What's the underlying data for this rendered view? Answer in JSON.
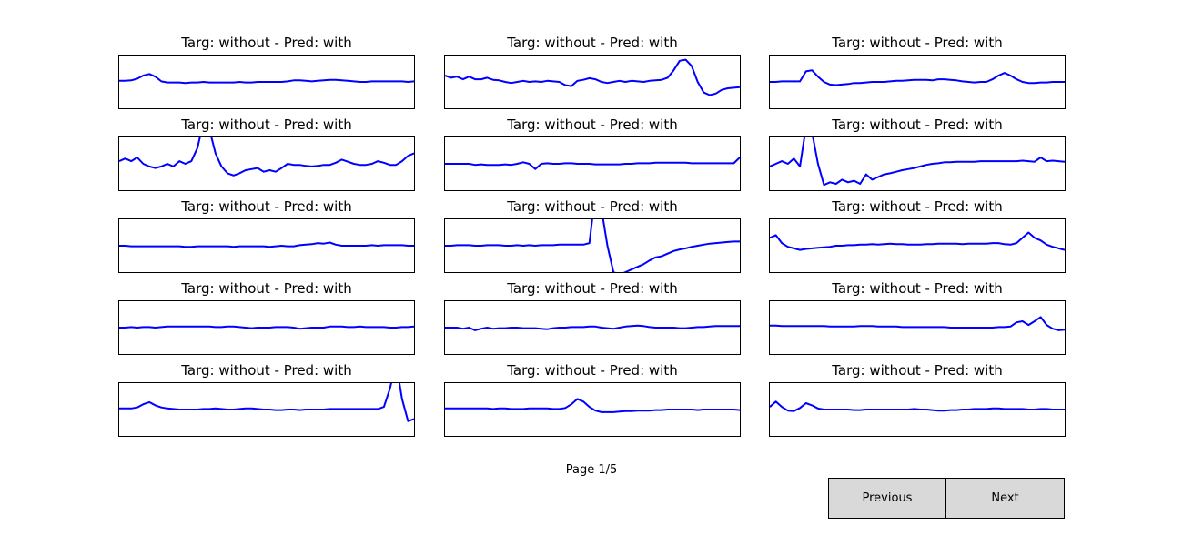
{
  "page_label": "Page 1/5",
  "buttons": {
    "previous": "Previous",
    "next": "Next"
  },
  "colors": {
    "line": "#0000ff",
    "button_bg": "#d9d9d9"
  },
  "chart_data": {
    "type": "line",
    "layout": "grid 5 rows x 3 columns",
    "axes_visible": false,
    "panels": [
      {
        "title": "Targ: without - Pred: with",
        "y": [
          0.48,
          0.48,
          0.47,
          0.44,
          0.38,
          0.35,
          0.4,
          0.49,
          0.51,
          0.51,
          0.51,
          0.52,
          0.51,
          0.51,
          0.5,
          0.51,
          0.51,
          0.51,
          0.51,
          0.51,
          0.5,
          0.51,
          0.51,
          0.5,
          0.5,
          0.5,
          0.5,
          0.5,
          0.49,
          0.47,
          0.47,
          0.48,
          0.49,
          0.48,
          0.47,
          0.46,
          0.46,
          0.47,
          0.48,
          0.49,
          0.5,
          0.5,
          0.49,
          0.49,
          0.49,
          0.49,
          0.49,
          0.49,
          0.5,
          0.49
        ]
      },
      {
        "title": "Targ: without - Pred: with",
        "y": [
          0.38,
          0.42,
          0.4,
          0.45,
          0.4,
          0.45,
          0.45,
          0.42,
          0.46,
          0.47,
          0.5,
          0.52,
          0.5,
          0.48,
          0.5,
          0.49,
          0.5,
          0.48,
          0.49,
          0.5,
          0.56,
          0.58,
          0.48,
          0.46,
          0.43,
          0.45,
          0.5,
          0.52,
          0.5,
          0.48,
          0.5,
          0.48,
          0.49,
          0.5,
          0.48,
          0.47,
          0.46,
          0.42,
          0.28,
          0.1,
          0.08,
          0.2,
          0.5,
          0.7,
          0.75,
          0.72,
          0.65,
          0.62,
          0.61,
          0.6
        ]
      },
      {
        "title": "Targ: without - Pred: with",
        "y": [
          0.5,
          0.5,
          0.49,
          0.49,
          0.49,
          0.49,
          0.3,
          0.28,
          0.4,
          0.5,
          0.55,
          0.56,
          0.55,
          0.54,
          0.52,
          0.52,
          0.51,
          0.5,
          0.5,
          0.5,
          0.49,
          0.48,
          0.48,
          0.47,
          0.46,
          0.46,
          0.46,
          0.47,
          0.45,
          0.45,
          0.46,
          0.47,
          0.49,
          0.5,
          0.51,
          0.5,
          0.5,
          0.45,
          0.38,
          0.33,
          0.38,
          0.45,
          0.5,
          0.52,
          0.52,
          0.51,
          0.51,
          0.5,
          0.5,
          0.5
        ]
      },
      {
        "title": "Targ: without - Pred: with",
        "y": [
          0.45,
          0.4,
          0.45,
          0.38,
          0.5,
          0.55,
          0.58,
          0.55,
          0.5,
          0.55,
          0.45,
          0.5,
          0.45,
          0.2,
          -0.3,
          -0.15,
          0.3,
          0.55,
          0.68,
          0.72,
          0.68,
          0.62,
          0.6,
          0.58,
          0.65,
          0.62,
          0.65,
          0.58,
          0.5,
          0.52,
          0.52,
          0.54,
          0.55,
          0.54,
          0.52,
          0.52,
          0.48,
          0.42,
          0.46,
          0.5,
          0.52,
          0.52,
          0.5,
          0.45,
          0.48,
          0.52,
          0.52,
          0.45,
          0.35,
          0.3
        ]
      },
      {
        "title": "Targ: without - Pred: with",
        "y": [
          0.5,
          0.5,
          0.5,
          0.5,
          0.5,
          0.52,
          0.51,
          0.52,
          0.52,
          0.52,
          0.51,
          0.52,
          0.5,
          0.47,
          0.5,
          0.6,
          0.5,
          0.49,
          0.5,
          0.5,
          0.49,
          0.49,
          0.5,
          0.5,
          0.5,
          0.51,
          0.51,
          0.51,
          0.51,
          0.51,
          0.5,
          0.5,
          0.49,
          0.49,
          0.49,
          0.48,
          0.48,
          0.48,
          0.48,
          0.48,
          0.48,
          0.49,
          0.49,
          0.49,
          0.49,
          0.49,
          0.49,
          0.49,
          0.49,
          0.38
        ]
      },
      {
        "title": "Targ: without - Pred: with",
        "y": [
          0.55,
          0.5,
          0.45,
          0.5,
          0.4,
          0.55,
          -0.2,
          -0.1,
          0.5,
          0.9,
          0.85,
          0.88,
          0.8,
          0.85,
          0.82,
          0.88,
          0.7,
          0.8,
          0.75,
          0.7,
          0.68,
          0.65,
          0.62,
          0.6,
          0.58,
          0.55,
          0.52,
          0.5,
          0.49,
          0.47,
          0.47,
          0.46,
          0.46,
          0.46,
          0.46,
          0.45,
          0.45,
          0.45,
          0.45,
          0.45,
          0.45,
          0.45,
          0.44,
          0.45,
          0.46,
          0.38,
          0.45,
          0.44,
          0.45,
          0.46
        ]
      },
      {
        "title": "Targ: without - Pred: with",
        "y": [
          0.5,
          0.5,
          0.51,
          0.51,
          0.51,
          0.51,
          0.51,
          0.51,
          0.51,
          0.51,
          0.51,
          0.52,
          0.52,
          0.51,
          0.51,
          0.51,
          0.51,
          0.51,
          0.51,
          0.52,
          0.51,
          0.51,
          0.51,
          0.51,
          0.51,
          0.52,
          0.51,
          0.5,
          0.51,
          0.51,
          0.49,
          0.48,
          0.47,
          0.45,
          0.46,
          0.44,
          0.48,
          0.5,
          0.5,
          0.5,
          0.5,
          0.5,
          0.49,
          0.5,
          0.49,
          0.49,
          0.49,
          0.49,
          0.5,
          0.5
        ]
      },
      {
        "title": "Targ: without - Pred: with",
        "y": [
          0.5,
          0.5,
          0.49,
          0.49,
          0.49,
          0.5,
          0.5,
          0.49,
          0.49,
          0.49,
          0.5,
          0.5,
          0.49,
          0.5,
          0.49,
          0.5,
          0.49,
          0.49,
          0.49,
          0.48,
          0.48,
          0.48,
          0.48,
          0.48,
          0.45,
          -0.5,
          -0.2,
          0.5,
          1.0,
          1.05,
          1.0,
          0.95,
          0.9,
          0.85,
          0.78,
          0.72,
          0.7,
          0.65,
          0.6,
          0.57,
          0.55,
          0.52,
          0.5,
          0.48,
          0.46,
          0.45,
          0.44,
          0.43,
          0.42,
          0.42
        ]
      },
      {
        "title": "Targ: without - Pred: with",
        "y": [
          0.35,
          0.3,
          0.45,
          0.52,
          0.55,
          0.58,
          0.56,
          0.55,
          0.54,
          0.53,
          0.52,
          0.5,
          0.5,
          0.49,
          0.49,
          0.48,
          0.48,
          0.47,
          0.48,
          0.47,
          0.46,
          0.47,
          0.47,
          0.48,
          0.48,
          0.48,
          0.47,
          0.47,
          0.46,
          0.46,
          0.46,
          0.46,
          0.47,
          0.46,
          0.46,
          0.46,
          0.46,
          0.45,
          0.45,
          0.47,
          0.48,
          0.45,
          0.35,
          0.25,
          0.35,
          0.4,
          0.48,
          0.52,
          0.55,
          0.58
        ]
      },
      {
        "title": "Targ: without - Pred: with",
        "y": [
          0.5,
          0.5,
          0.49,
          0.5,
          0.49,
          0.49,
          0.5,
          0.49,
          0.48,
          0.48,
          0.48,
          0.48,
          0.48,
          0.48,
          0.48,
          0.48,
          0.49,
          0.49,
          0.48,
          0.48,
          0.49,
          0.5,
          0.51,
          0.5,
          0.5,
          0.5,
          0.49,
          0.49,
          0.49,
          0.5,
          0.52,
          0.51,
          0.5,
          0.5,
          0.5,
          0.48,
          0.48,
          0.48,
          0.49,
          0.49,
          0.48,
          0.49,
          0.49,
          0.49,
          0.49,
          0.5,
          0.5,
          0.49,
          0.49,
          0.48
        ]
      },
      {
        "title": "Targ: without - Pred: with",
        "y": [
          0.5,
          0.5,
          0.5,
          0.52,
          0.5,
          0.55,
          0.52,
          0.5,
          0.52,
          0.51,
          0.51,
          0.5,
          0.5,
          0.51,
          0.51,
          0.51,
          0.52,
          0.53,
          0.51,
          0.5,
          0.5,
          0.49,
          0.49,
          0.49,
          0.48,
          0.48,
          0.5,
          0.51,
          0.52,
          0.5,
          0.48,
          0.47,
          0.46,
          0.47,
          0.49,
          0.5,
          0.5,
          0.5,
          0.5,
          0.51,
          0.51,
          0.5,
          0.49,
          0.49,
          0.48,
          0.47,
          0.47,
          0.47,
          0.47,
          0.47
        ]
      },
      {
        "title": "Targ: without - Pred: with",
        "y": [
          0.46,
          0.46,
          0.47,
          0.47,
          0.47,
          0.47,
          0.47,
          0.47,
          0.47,
          0.47,
          0.48,
          0.48,
          0.48,
          0.48,
          0.48,
          0.47,
          0.47,
          0.47,
          0.48,
          0.48,
          0.48,
          0.48,
          0.49,
          0.49,
          0.49,
          0.49,
          0.49,
          0.49,
          0.49,
          0.49,
          0.5,
          0.5,
          0.5,
          0.5,
          0.5,
          0.5,
          0.5,
          0.5,
          0.49,
          0.49,
          0.48,
          0.4,
          0.38,
          0.45,
          0.38,
          0.3,
          0.45,
          0.52,
          0.55,
          0.54
        ]
      },
      {
        "title": "Targ: without - Pred: with",
        "y": [
          0.48,
          0.48,
          0.48,
          0.46,
          0.4,
          0.36,
          0.42,
          0.46,
          0.48,
          0.49,
          0.5,
          0.5,
          0.5,
          0.5,
          0.49,
          0.49,
          0.48,
          0.49,
          0.5,
          0.5,
          0.49,
          0.48,
          0.48,
          0.49,
          0.5,
          0.5,
          0.51,
          0.51,
          0.5,
          0.5,
          0.51,
          0.5,
          0.5,
          0.5,
          0.5,
          0.49,
          0.49,
          0.49,
          0.49,
          0.49,
          0.49,
          0.49,
          0.49,
          0.49,
          0.45,
          0.1,
          -0.4,
          0.3,
          0.72,
          0.68
        ]
      },
      {
        "title": "Targ: without - Pred: with",
        "y": [
          0.48,
          0.48,
          0.48,
          0.48,
          0.48,
          0.48,
          0.48,
          0.48,
          0.49,
          0.48,
          0.48,
          0.49,
          0.49,
          0.49,
          0.48,
          0.48,
          0.48,
          0.48,
          0.49,
          0.49,
          0.47,
          0.4,
          0.3,
          0.35,
          0.45,
          0.52,
          0.55,
          0.55,
          0.55,
          0.54,
          0.53,
          0.53,
          0.52,
          0.52,
          0.52,
          0.51,
          0.51,
          0.5,
          0.5,
          0.5,
          0.5,
          0.5,
          0.51,
          0.5,
          0.5,
          0.5,
          0.5,
          0.5,
          0.5,
          0.51
        ]
      },
      {
        "title": "Targ: without - Pred: with",
        "y": [
          0.45,
          0.35,
          0.45,
          0.52,
          0.53,
          0.47,
          0.38,
          0.42,
          0.48,
          0.5,
          0.5,
          0.5,
          0.5,
          0.5,
          0.51,
          0.51,
          0.5,
          0.5,
          0.5,
          0.5,
          0.5,
          0.5,
          0.5,
          0.5,
          0.49,
          0.5,
          0.5,
          0.51,
          0.52,
          0.52,
          0.51,
          0.51,
          0.5,
          0.5,
          0.49,
          0.49,
          0.49,
          0.48,
          0.48,
          0.49,
          0.49,
          0.49,
          0.49,
          0.5,
          0.5,
          0.49,
          0.49,
          0.5,
          0.5,
          0.5
        ]
      }
    ]
  }
}
